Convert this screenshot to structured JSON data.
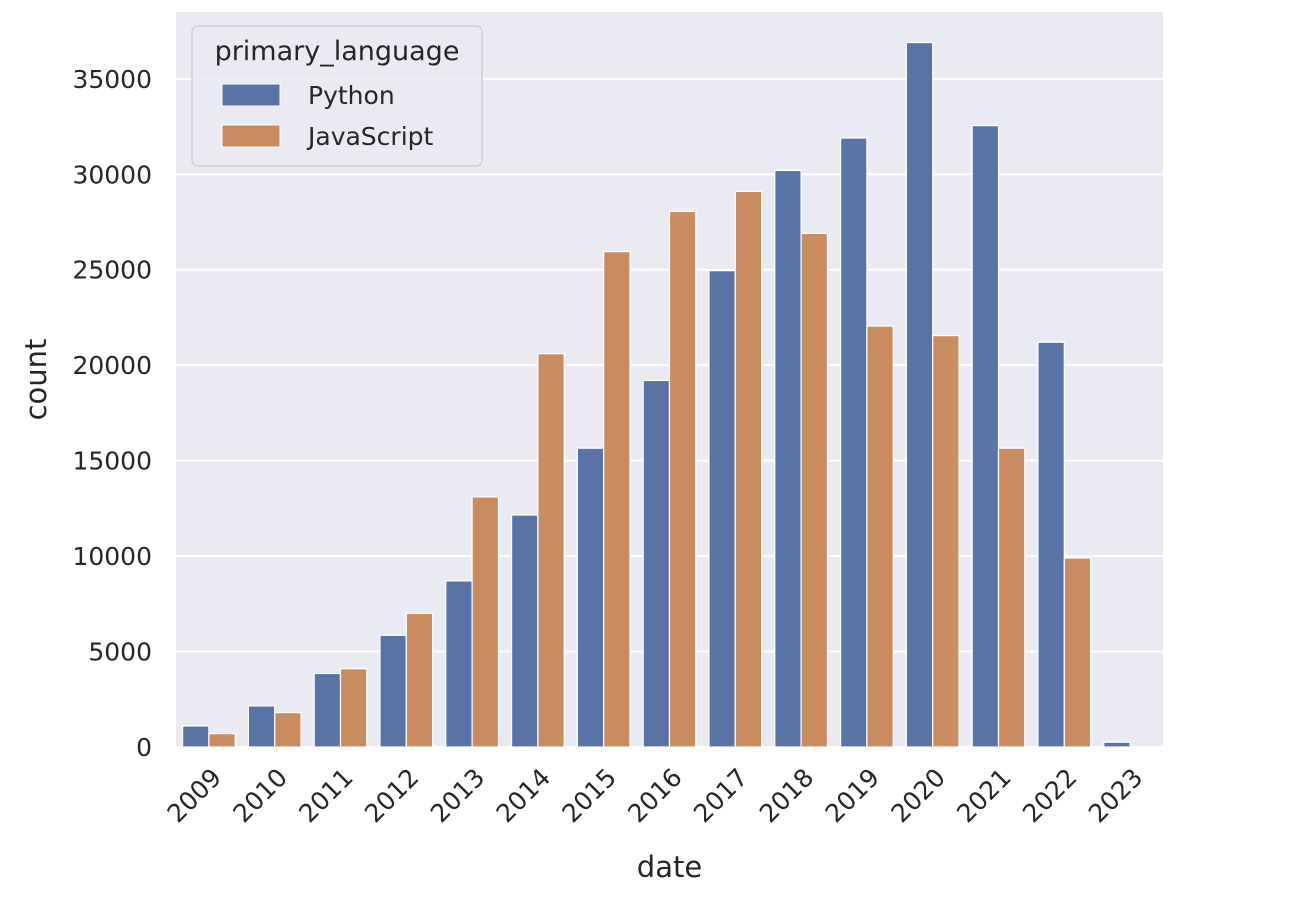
{
  "chart_data": {
    "type": "bar",
    "xlabel": "date",
    "ylabel": "count",
    "categories": [
      "2009",
      "2010",
      "2011",
      "2012",
      "2013",
      "2014",
      "2015",
      "2016",
      "2017",
      "2018",
      "2019",
      "2020",
      "2021",
      "2022",
      "2023"
    ],
    "series": [
      {
        "name": "Python",
        "color": "#5a73a6",
        "values": [
          1100,
          2150,
          3850,
          5850,
          8700,
          12150,
          15650,
          19200,
          24950,
          30200,
          31900,
          36900,
          32550,
          21200,
          250
        ]
      },
      {
        "name": "JavaScript",
        "color": "#c98c5f",
        "values": [
          700,
          1800,
          4100,
          7000,
          13100,
          20600,
          25950,
          28050,
          29100,
          26900,
          22050,
          21550,
          15650,
          9900,
          0
        ]
      }
    ],
    "yticks": [
      0,
      5000,
      10000,
      15000,
      20000,
      25000,
      30000,
      35000
    ],
    "ylim": [
      0,
      38500
    ],
    "grid": true,
    "legend": {
      "title": "primary_language",
      "position": "upper-left"
    },
    "background_color": "#eaeaf2",
    "grid_color": "#ffffff"
  }
}
